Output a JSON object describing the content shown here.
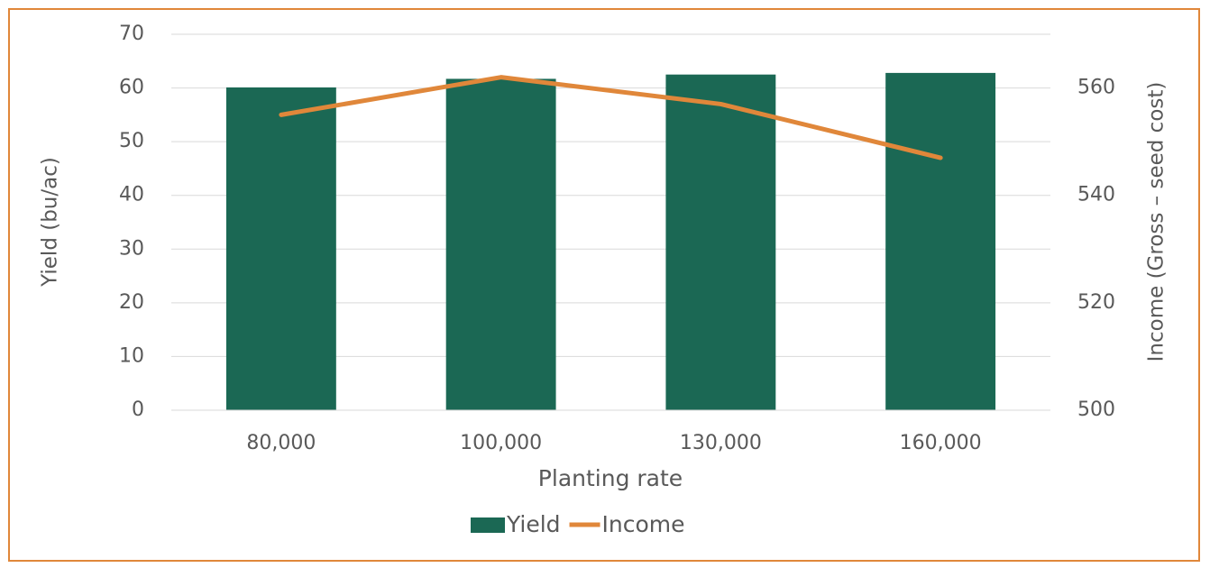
{
  "chart_data": {
    "type": "bar-line",
    "x_label": "Planting rate",
    "y_label": "Yield (bu/ac)",
    "y2_label": "Income (Gross – seed cost)",
    "categories": [
      "80,000",
      "100,000",
      "130,000",
      "160,000"
    ],
    "series": [
      {
        "name": "Yield",
        "type": "bar",
        "color": "#1b6854",
        "values": [
          60.1,
          61.7,
          62.5,
          62.8
        ]
      },
      {
        "name": "Income",
        "type": "line",
        "axis": "y2",
        "color": "#e0873a",
        "values": [
          555,
          562,
          557,
          547
        ]
      }
    ],
    "ylim": [
      0,
      70
    ],
    "yticks": [
      0,
      10,
      20,
      30,
      40,
      50,
      60,
      70
    ],
    "y2lim": [
      500,
      570
    ],
    "y2ticks": [
      500,
      520,
      540,
      560
    ],
    "grid": true,
    "legend": "bottom"
  }
}
